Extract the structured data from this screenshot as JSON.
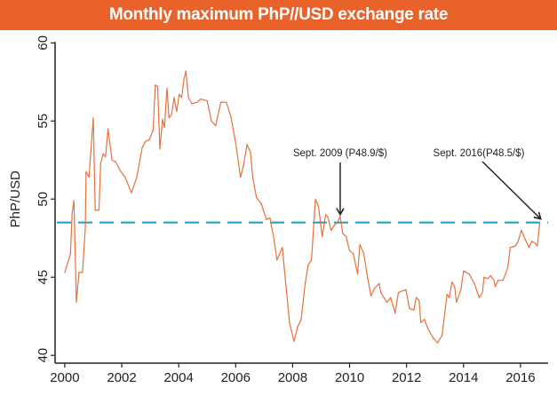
{
  "title": "Monthly maximum PhP//USD exchange rate",
  "chart_data": {
    "type": "line",
    "title": "Monthly maximum PhP//USD exchange rate",
    "xlabel": "",
    "ylabel": "PhP/USD",
    "xlim": [
      1999.66,
      2016.97
    ],
    "ylim": [
      39.5,
      60.3
    ],
    "x_ticks": [
      "2000",
      "2002",
      "2004",
      "2006",
      "2008",
      "2010",
      "2012",
      "2014",
      "2016"
    ],
    "y_ticks": [
      "40",
      "45",
      "50",
      "55",
      "60"
    ],
    "grid": false,
    "line_color": "#e8703a",
    "reference_line": {
      "value": 48.5,
      "style": "dashed",
      "color": "#2aa6c8"
    },
    "annotations": [
      {
        "text": "Sept. 2009 (P48.9/$)",
        "x": 2009.67,
        "y": 48.9
      },
      {
        "text": "Sept. 2016(P48.5/$)",
        "x": 2016.68,
        "y": 48.5
      }
    ],
    "series": [
      {
        "x": [
          2000.0,
          2000.2,
          2000.26,
          2000.32,
          2000.41,
          2000.5,
          2000.62,
          2000.72,
          2000.75,
          2000.85,
          2001.0,
          2001.07,
          2001.2,
          2001.26,
          2001.35,
          2001.43,
          2001.52,
          2001.66,
          2001.78,
          2001.97,
          2002.12,
          2002.34,
          2002.53,
          2002.72,
          2002.84,
          2002.97,
          2003.1,
          2003.18,
          2003.26,
          2003.34,
          2003.43,
          2003.5,
          2003.59,
          2003.66,
          2003.75,
          2003.84,
          2003.93,
          2004.02,
          2004.1,
          2004.19,
          2004.25,
          2004.34,
          2004.46,
          2004.65,
          2004.77,
          2005.0,
          2005.15,
          2005.3,
          2005.48,
          2005.67,
          2005.83,
          2006.0,
          2006.17,
          2006.27,
          2006.4,
          2006.52,
          2006.6,
          2006.73,
          2006.9,
          2007.08,
          2007.2,
          2007.33,
          2007.45,
          2007.64,
          2007.7,
          2007.89,
          2008.05,
          2008.17,
          2008.3,
          2008.45,
          2008.55,
          2008.66,
          2008.8,
          2008.91,
          2009.04,
          2009.16,
          2009.23,
          2009.35,
          2009.45,
          2009.57,
          2009.67,
          2009.76,
          2009.88,
          2010.0,
          2010.13,
          2010.28,
          2010.36,
          2010.5,
          2010.6,
          2010.75,
          2010.88,
          2011.04,
          2011.1,
          2011.31,
          2011.44,
          2011.6,
          2011.71,
          2011.81,
          2011.98,
          2012.1,
          2012.25,
          2012.34,
          2012.44,
          2012.5,
          2012.63,
          2012.75,
          2012.94,
          2013.09,
          2013.25,
          2013.42,
          2013.5,
          2013.6,
          2013.69,
          2013.75,
          2013.91,
          2014.0,
          2014.2,
          2014.38,
          2014.55,
          2014.66,
          2014.72,
          2014.85,
          2014.95,
          2015.07,
          2015.11,
          2015.22,
          2015.39,
          2015.55,
          2015.64,
          2015.82,
          2015.92,
          2016.03,
          2016.17,
          2016.3,
          2016.4,
          2016.5,
          2016.59,
          2016.68
        ],
        "y": [
          45.3,
          46.5,
          49.1,
          49.9,
          43.4,
          45.3,
          45.3,
          48.1,
          51.75,
          51.4,
          55.2,
          49.3,
          49.3,
          52.3,
          52.9,
          52.7,
          54.5,
          52.5,
          52.4,
          51.75,
          51.4,
          50.4,
          51.4,
          53.3,
          53.7,
          53.8,
          54.4,
          57.3,
          57.2,
          53.2,
          55.1,
          54.6,
          57.1,
          55.2,
          55.4,
          56.5,
          55.6,
          56.7,
          56.5,
          57.7,
          58.2,
          56.5,
          56.1,
          56.2,
          56.4,
          56.3,
          55.0,
          54.7,
          56.2,
          56.2,
          55.3,
          53.6,
          51.4,
          52.1,
          53.5,
          53.0,
          51.4,
          50.1,
          49.7,
          48.7,
          48.8,
          47.6,
          46.1,
          46.9,
          45.7,
          42.1,
          40.9,
          41.8,
          42.3,
          44.7,
          45.8,
          46.1,
          50.0,
          49.5,
          47.6,
          49.0,
          48.9,
          48.0,
          48.3,
          48.5,
          48.9,
          47.8,
          47.6,
          46.7,
          46.5,
          45.2,
          47.1,
          46.5,
          45.3,
          43.8,
          44.3,
          44.6,
          44.0,
          43.4,
          43.7,
          42.7,
          44.0,
          44.1,
          44.2,
          43.0,
          42.9,
          43.7,
          43.5,
          42.1,
          42.3,
          41.7,
          41.1,
          40.8,
          41.3,
          43.9,
          43.7,
          44.7,
          44.4,
          43.4,
          44.2,
          45.4,
          45.2,
          44.6,
          43.7,
          44.0,
          45.0,
          44.9,
          45.1,
          44.8,
          44.4,
          44.8,
          44.8,
          45.6,
          46.9,
          47.0,
          47.3,
          48.0,
          47.4,
          46.9,
          47.3,
          47.2,
          47.0,
          48.5
        ]
      }
    ]
  }
}
